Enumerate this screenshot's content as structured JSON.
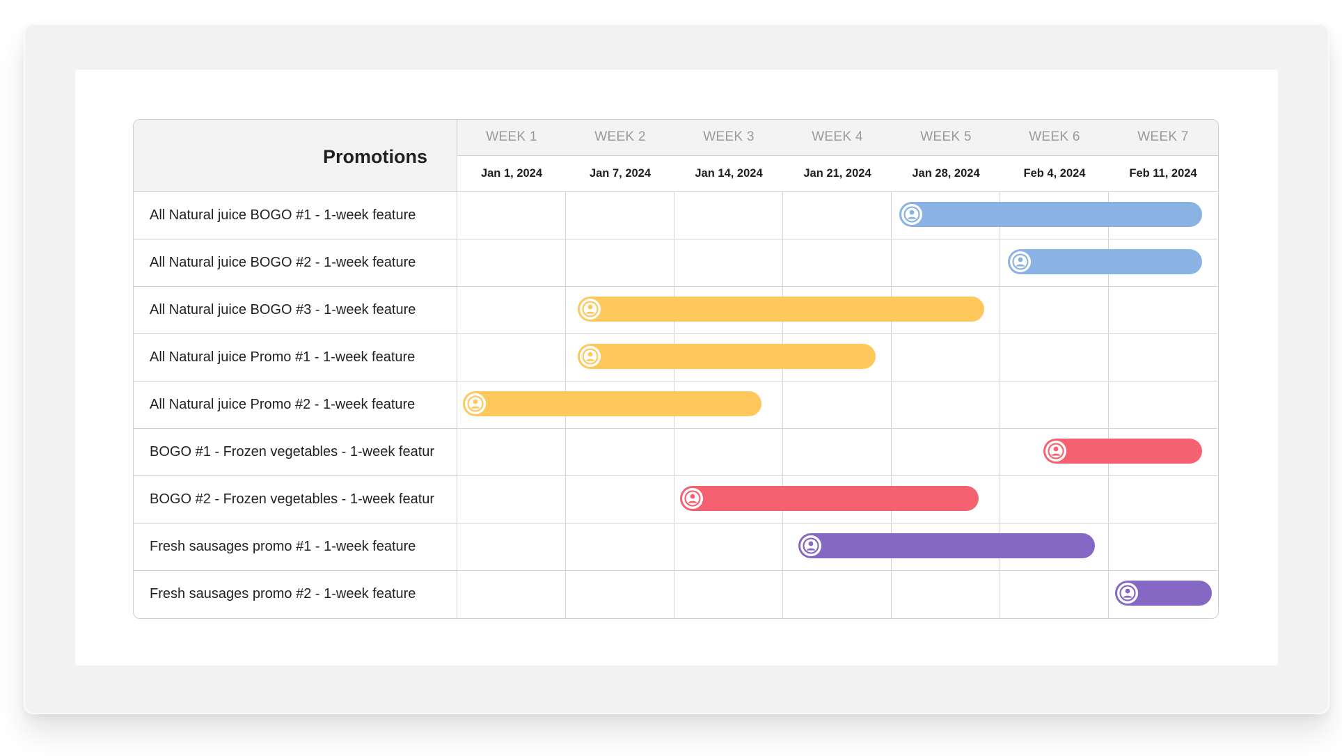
{
  "header": {
    "title": "Promotions",
    "weeks": [
      "WEEK 1",
      "WEEK 2",
      "WEEK 3",
      "WEEK 4",
      "WEEK 5",
      "WEEK 6",
      "WEEK 7"
    ],
    "dates": [
      "Jan 1, 2024",
      "Jan 7, 2024",
      "Jan 14, 2024",
      "Jan 21, 2024",
      "Jan 28, 2024",
      "Feb 4, 2024",
      "Feb 11, 2024"
    ]
  },
  "colors": {
    "blue": "#8ab3e3",
    "yellow": "#fec85c",
    "red": "#f46171",
    "purple": "#8468c3"
  },
  "rows": [
    {
      "label": "All Natural juice BOGO #1 - 1-week feature",
      "color": "blue",
      "start": 4.07,
      "end": 6.86,
      "icon": "user-avatar-icon"
    },
    {
      "label": "All Natural juice BOGO #2 - 1-week feature",
      "color": "blue",
      "start": 5.07,
      "end": 6.86,
      "icon": "user-avatar-icon"
    },
    {
      "label": "All Natural juice BOGO #3 - 1-week feature",
      "color": "yellow",
      "start": 1.11,
      "end": 4.85,
      "icon": "user-avatar-icon"
    },
    {
      "label": "All Natural juice Promo #1 - 1-week feature",
      "color": "yellow",
      "start": 1.11,
      "end": 3.85,
      "icon": "user-avatar-icon"
    },
    {
      "label": "All Natural juice Promo #2 - 1-week feature",
      "color": "yellow",
      "start": 0.05,
      "end": 2.8,
      "icon": "user-avatar-icon"
    },
    {
      "label": "BOGO #1 - Frozen vegetables - 1-week featur",
      "color": "red",
      "start": 5.4,
      "end": 6.86,
      "icon": "user-avatar-icon"
    },
    {
      "label": "BOGO #2 - Frozen vegetables - 1-week featur",
      "color": "red",
      "start": 2.05,
      "end": 4.8,
      "icon": "user-avatar-icon"
    },
    {
      "label": "Fresh sausages promo #1 - 1-week feature",
      "color": "purple",
      "start": 3.14,
      "end": 5.87,
      "icon": "user-avatar-icon"
    },
    {
      "label": "Fresh sausages promo #2 - 1-week feature",
      "color": "purple",
      "start": 6.06,
      "end": 6.95,
      "icon": "user-avatar-icon"
    }
  ]
}
